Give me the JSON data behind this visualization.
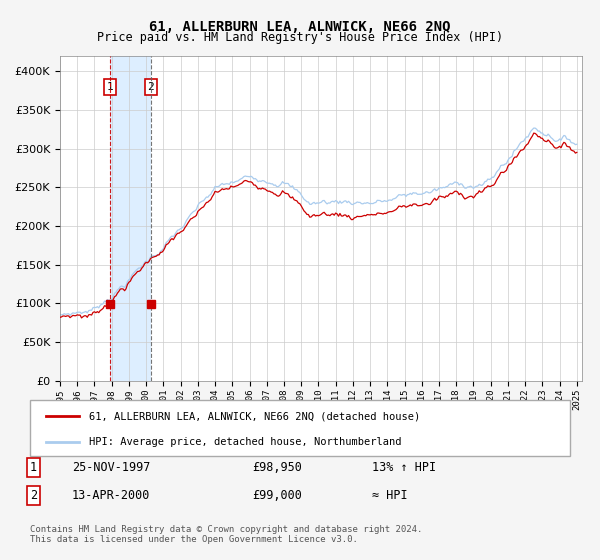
{
  "title": "61, ALLERBURN LEA, ALNWICK, NE66 2NQ",
  "subtitle": "Price paid vs. HM Land Registry's House Price Index (HPI)",
  "ylim": [
    0,
    420000
  ],
  "yticks": [
    0,
    50000,
    100000,
    150000,
    200000,
    250000,
    300000,
    350000,
    400000
  ],
  "xlim_start": 1995.0,
  "xlim_end": 2025.3,
  "legend_line1": "61, ALLERBURN LEA, ALNWICK, NE66 2NQ (detached house)",
  "legend_line2": "HPI: Average price, detached house, Northumberland",
  "hpi_color": "#aaccee",
  "price_color": "#cc0000",
  "shade_color": "#ddeeff",
  "sale1_date": 1997.9,
  "sale1_price": 98950,
  "sale2_date": 2000.28,
  "sale2_price": 99000,
  "table_row1": [
    "1",
    "25-NOV-1997",
    "£98,950",
    "13% ↑ HPI"
  ],
  "table_row2": [
    "2",
    "13-APR-2000",
    "£99,000",
    "≈ HPI"
  ],
  "copyright": "Contains HM Land Registry data © Crown copyright and database right 2024.\nThis data is licensed under the Open Government Licence v3.0.",
  "background_color": "#f5f5f5",
  "plot_bg_color": "#ffffff",
  "grid_color": "#cccccc"
}
